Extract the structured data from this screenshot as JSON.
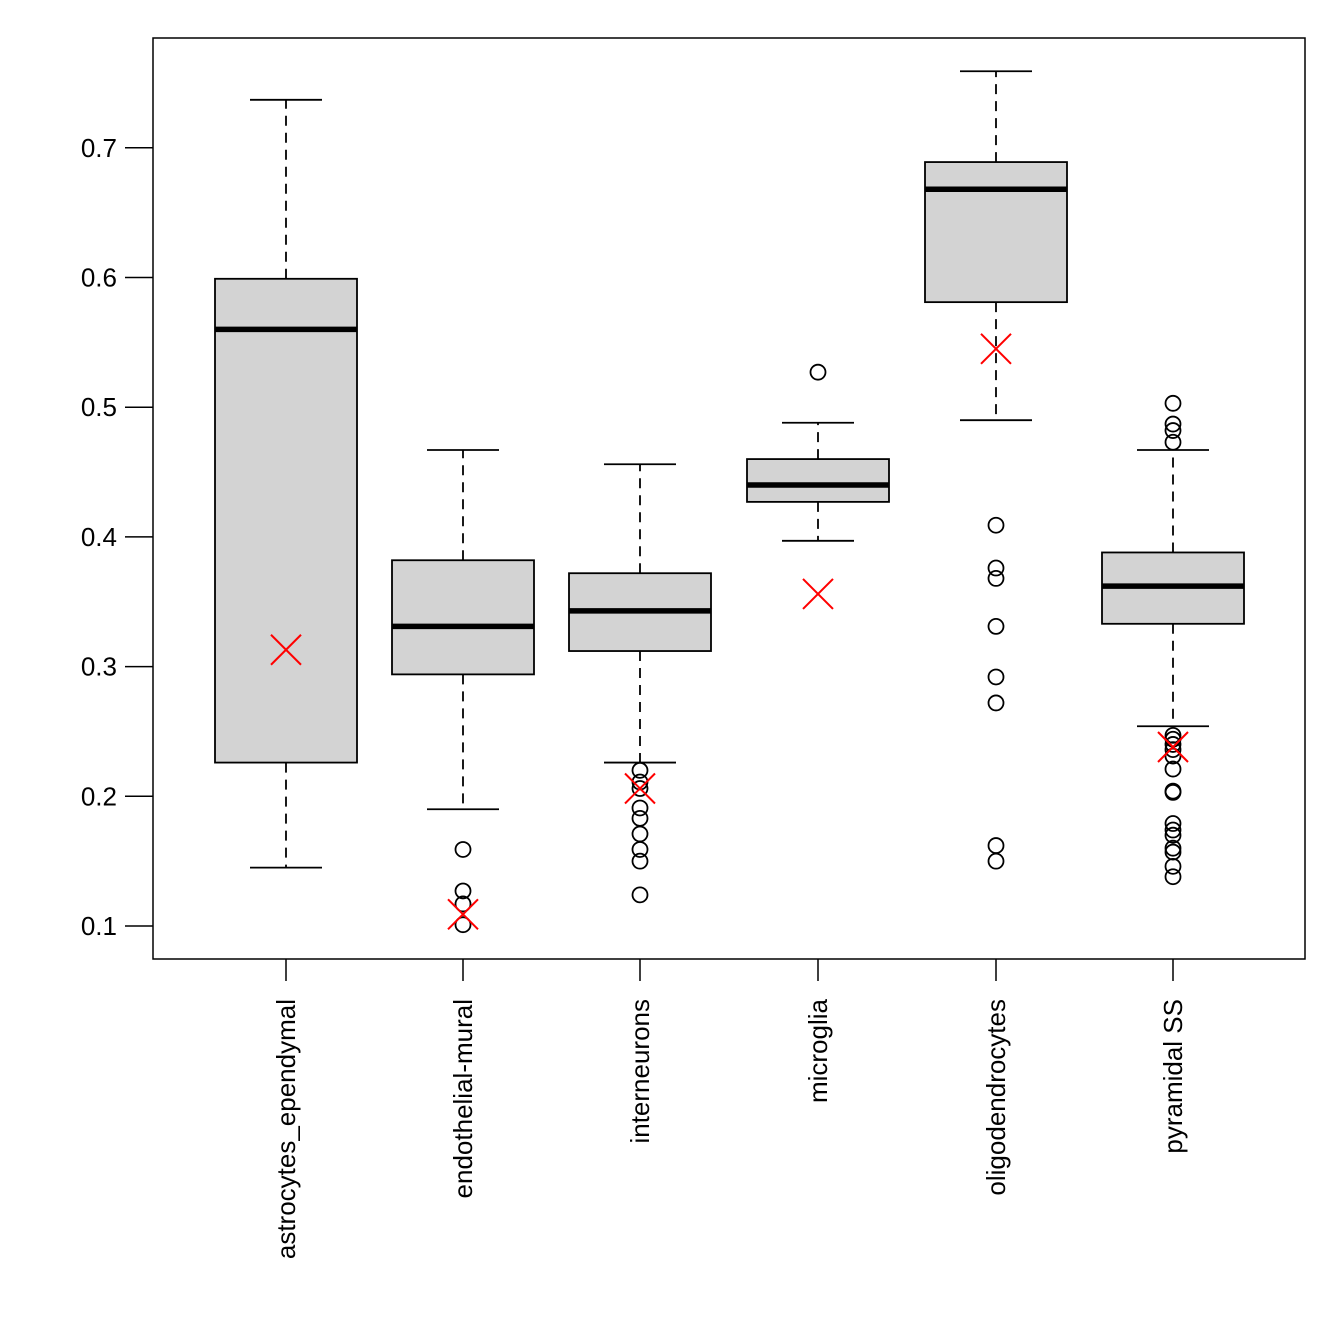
{
  "chart_data": {
    "type": "boxplot",
    "title": "",
    "xlabel": "",
    "ylabel": "",
    "ylim": [
      0.075,
      0.785
    ],
    "yticks": [
      0.1,
      0.2,
      0.3,
      0.4,
      0.5,
      0.6,
      0.7
    ],
    "ytick_labels": [
      "0.1",
      "0.2",
      "0.3",
      "0.4",
      "0.5",
      "0.6",
      "0.7"
    ],
    "grid": false,
    "legend": null,
    "colors": {
      "box_fill": "#d3d3d3",
      "stroke": "#000000",
      "marker": "#ff0000"
    },
    "categories": [
      "astrocytes_ependymal",
      "endothelial-mural",
      "interneurons",
      "microglia",
      "oligodendrocytes",
      "pyramidal SS"
    ],
    "boxes": [
      {
        "name": "astrocytes_ependymal",
        "whisker_low": 0.145,
        "q1": 0.226,
        "median": 0.56,
        "q3": 0.599,
        "whisker_high": 0.737,
        "outliers": [],
        "marker_x": 0.313
      },
      {
        "name": "endothelial-mural",
        "whisker_low": 0.19,
        "q1": 0.294,
        "median": 0.331,
        "q3": 0.382,
        "whisker_high": 0.467,
        "outliers": [
          0.159,
          0.127,
          0.117,
          0.101
        ],
        "marker_x": 0.109
      },
      {
        "name": "interneurons",
        "whisker_low": 0.226,
        "q1": 0.312,
        "median": 0.343,
        "q3": 0.372,
        "whisker_high": 0.456,
        "outliers": [
          0.22,
          0.211,
          0.206,
          0.191,
          0.183,
          0.171,
          0.159,
          0.15,
          0.124
        ],
        "marker_x": 0.206
      },
      {
        "name": "microglia",
        "whisker_low": 0.397,
        "q1": 0.427,
        "median": 0.44,
        "q3": 0.46,
        "whisker_high": 0.488,
        "outliers": [
          0.527
        ],
        "marker_x": 0.356
      },
      {
        "name": "oligodendrocytes",
        "whisker_low": 0.49,
        "q1": 0.581,
        "median": 0.668,
        "q3": 0.689,
        "whisker_high": 0.759,
        "outliers": [
          0.409,
          0.376,
          0.368,
          0.331,
          0.292,
          0.272,
          0.162,
          0.15
        ],
        "marker_x": 0.545
      },
      {
        "name": "pyramidal SS",
        "whisker_low": 0.254,
        "q1": 0.333,
        "median": 0.362,
        "q3": 0.388,
        "whisker_high": 0.467,
        "outliers": [
          0.503,
          0.487,
          0.482,
          0.473,
          0.247,
          0.244,
          0.24,
          0.236,
          0.231,
          0.221,
          0.204,
          0.203,
          0.179,
          0.174,
          0.17,
          0.16,
          0.157,
          0.146,
          0.138
        ],
        "marker_x": 0.238
      }
    ]
  }
}
